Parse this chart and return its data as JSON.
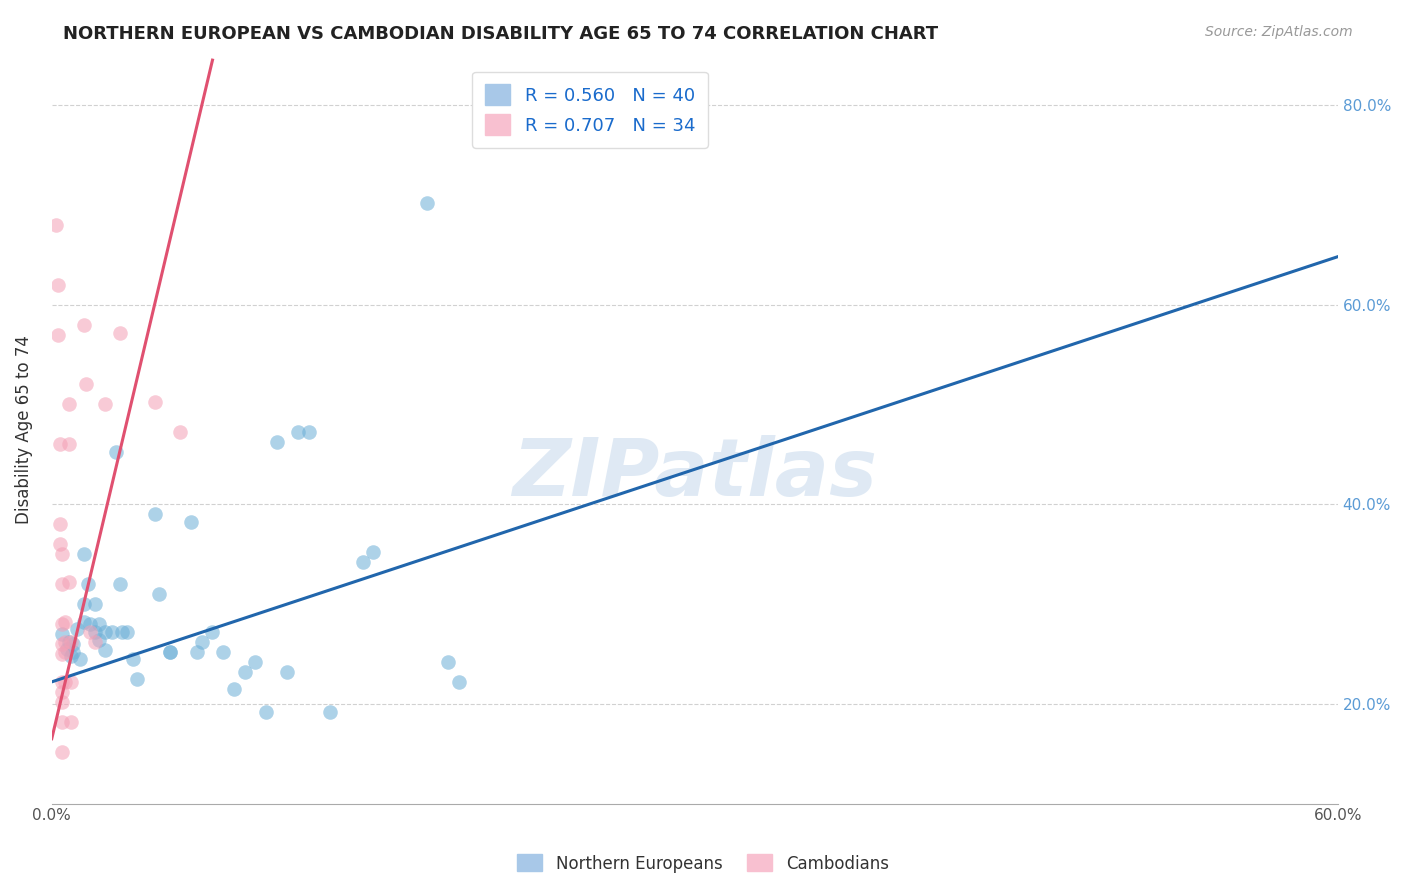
{
  "title": "NORTHERN EUROPEAN VS CAMBODIAN DISABILITY AGE 65 TO 74 CORRELATION CHART",
  "source": "Source: ZipAtlas.com",
  "ylabel": "Disability Age 65 to 74",
  "xlim": [
    0.0,
    0.6
  ],
  "ylim": [
    0.1,
    0.85
  ],
  "x_ticks": [
    0.0,
    0.1,
    0.2,
    0.3,
    0.4,
    0.5,
    0.6
  ],
  "x_tick_labels": [
    "0.0%",
    "",
    "",
    "",
    "",
    "",
    "60.0%"
  ],
  "y_ticks": [
    0.2,
    0.4,
    0.6,
    0.8
  ],
  "y_tick_labels": [
    "20.0%",
    "40.0%",
    "60.0%",
    "80.0%"
  ],
  "blue_color": "#6baed6",
  "pink_color": "#f4a0b5",
  "watermark": "ZIPatlas",
  "blue_scatter": [
    [
      0.005,
      0.27
    ],
    [
      0.007,
      0.255
    ],
    [
      0.008,
      0.262
    ],
    [
      0.009,
      0.248
    ],
    [
      0.01,
      0.26
    ],
    [
      0.01,
      0.252
    ],
    [
      0.012,
      0.275
    ],
    [
      0.013,
      0.245
    ],
    [
      0.015,
      0.282
    ],
    [
      0.015,
      0.3
    ],
    [
      0.015,
      0.35
    ],
    [
      0.017,
      0.32
    ],
    [
      0.018,
      0.28
    ],
    [
      0.02,
      0.3
    ],
    [
      0.02,
      0.272
    ],
    [
      0.022,
      0.28
    ],
    [
      0.022,
      0.264
    ],
    [
      0.025,
      0.272
    ],
    [
      0.025,
      0.254
    ],
    [
      0.028,
      0.272
    ],
    [
      0.03,
      0.452
    ],
    [
      0.032,
      0.32
    ],
    [
      0.033,
      0.272
    ],
    [
      0.035,
      0.272
    ],
    [
      0.038,
      0.245
    ],
    [
      0.04,
      0.225
    ],
    [
      0.048,
      0.39
    ],
    [
      0.05,
      0.31
    ],
    [
      0.055,
      0.252
    ],
    [
      0.055,
      0.252
    ],
    [
      0.065,
      0.382
    ],
    [
      0.068,
      0.252
    ],
    [
      0.07,
      0.262
    ],
    [
      0.075,
      0.272
    ],
    [
      0.08,
      0.252
    ],
    [
      0.085,
      0.215
    ],
    [
      0.09,
      0.232
    ],
    [
      0.095,
      0.242
    ],
    [
      0.1,
      0.192
    ],
    [
      0.105,
      0.462
    ],
    [
      0.11,
      0.232
    ],
    [
      0.115,
      0.472
    ],
    [
      0.12,
      0.472
    ],
    [
      0.13,
      0.192
    ],
    [
      0.145,
      0.342
    ],
    [
      0.15,
      0.352
    ],
    [
      0.175,
      0.702
    ],
    [
      0.185,
      0.242
    ],
    [
      0.19,
      0.222
    ]
  ],
  "pink_scatter": [
    [
      0.002,
      0.68
    ],
    [
      0.003,
      0.62
    ],
    [
      0.003,
      0.57
    ],
    [
      0.004,
      0.46
    ],
    [
      0.004,
      0.38
    ],
    [
      0.004,
      0.36
    ],
    [
      0.005,
      0.35
    ],
    [
      0.005,
      0.32
    ],
    [
      0.005,
      0.28
    ],
    [
      0.005,
      0.26
    ],
    [
      0.005,
      0.25
    ],
    [
      0.005,
      0.222
    ],
    [
      0.005,
      0.212
    ],
    [
      0.005,
      0.202
    ],
    [
      0.005,
      0.182
    ],
    [
      0.005,
      0.152
    ],
    [
      0.006,
      0.282
    ],
    [
      0.006,
      0.262
    ],
    [
      0.006,
      0.252
    ],
    [
      0.006,
      0.222
    ],
    [
      0.008,
      0.5
    ],
    [
      0.008,
      0.46
    ],
    [
      0.008,
      0.322
    ],
    [
      0.009,
      0.262
    ],
    [
      0.009,
      0.222
    ],
    [
      0.009,
      0.182
    ],
    [
      0.015,
      0.58
    ],
    [
      0.016,
      0.52
    ],
    [
      0.018,
      0.272
    ],
    [
      0.02,
      0.262
    ],
    [
      0.025,
      0.5
    ],
    [
      0.032,
      0.572
    ],
    [
      0.048,
      0.502
    ],
    [
      0.06,
      0.472
    ]
  ],
  "blue_line_x": [
    0.0,
    0.6
  ],
  "blue_line_y": [
    0.222,
    0.648
  ],
  "pink_line_x": [
    0.0,
    0.075
  ],
  "pink_line_y": [
    0.165,
    0.845
  ]
}
